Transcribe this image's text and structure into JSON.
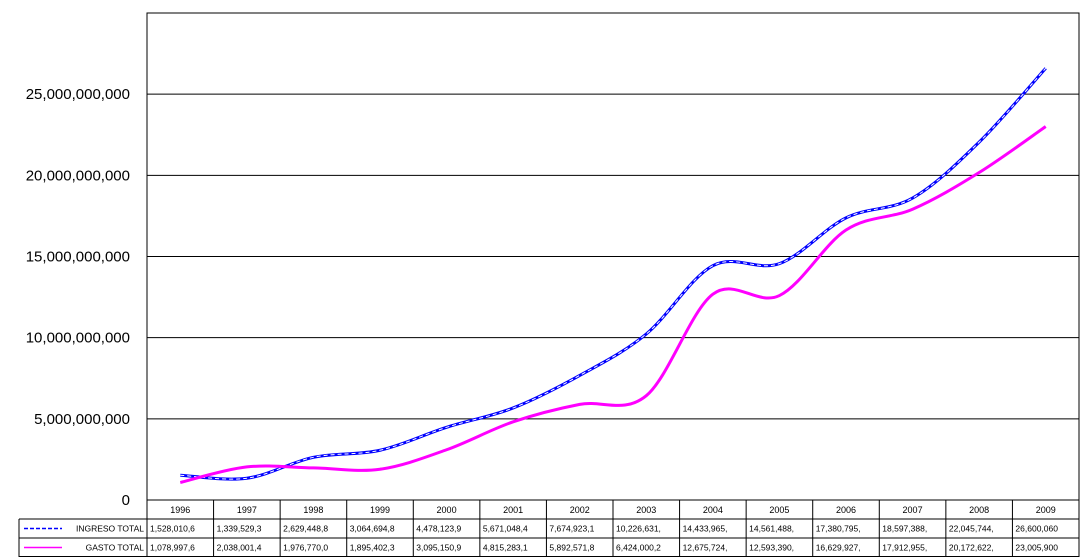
{
  "chart_data": {
    "type": "line",
    "title": "",
    "xlabel": "",
    "ylabel": "",
    "ylim": [
      0,
      30000000000
    ],
    "yticks": [
      0,
      5000000000,
      10000000000,
      15000000000,
      20000000000,
      25000000000
    ],
    "ytick_labels": [
      "0",
      "5,000,000,000",
      "10,000,000,000",
      "15,000,000,000",
      "20,000,000,000",
      "25,000,000,000"
    ],
    "grid": true,
    "legend": "data table below chart",
    "categories": [
      "1996",
      "1997",
      "1998",
      "1999",
      "2000",
      "2001",
      "2002",
      "2003",
      "2004",
      "2005",
      "2006",
      "2007",
      "2008",
      "2009"
    ],
    "series": [
      {
        "name": "INGRESO TOTAL",
        "color": "#0000ff",
        "style": "dashed",
        "values": [
          1528010600,
          1339529300,
          2629448800,
          3064694800,
          4478123900,
          5671048400,
          7674923100,
          10226631000,
          14433965000,
          14561488000,
          17380795000,
          18597388000,
          22045744000,
          26600060000
        ],
        "cell_labels": [
          "1,528,010,6",
          "1,339,529,3",
          "2,629,448,8",
          "3,064,694,8",
          "4,478,123,9",
          "5,671,048,4",
          "7,674,923,1",
          "10,226,631,",
          "14,433,965,",
          "14,561,488,",
          "17,380,795,",
          "18,597,388,",
          "22,045,744,",
          "26,600,060"
        ]
      },
      {
        "name": "GASTO TOTAL",
        "color": "#ff00ff",
        "style": "solid",
        "values": [
          1078997600,
          2038001400,
          1976770000,
          1895402300,
          3095150900,
          4815283100,
          5892571800,
          6424000200,
          12675724000,
          12593390000,
          16629927000,
          17912955000,
          20172622000,
          23005900000
        ],
        "cell_labels": [
          "1,078,997,6",
          "2,038,001,4",
          "1,976,770,0",
          "1,895,402,3",
          "3,095,150,9",
          "4,815,283,1",
          "5,892,571,8",
          "6,424,000,2",
          "12,675,724,",
          "12,593,390,",
          "16,629,927,",
          "17,912,955,",
          "20,172,622,",
          "23,005,900"
        ]
      }
    ]
  }
}
